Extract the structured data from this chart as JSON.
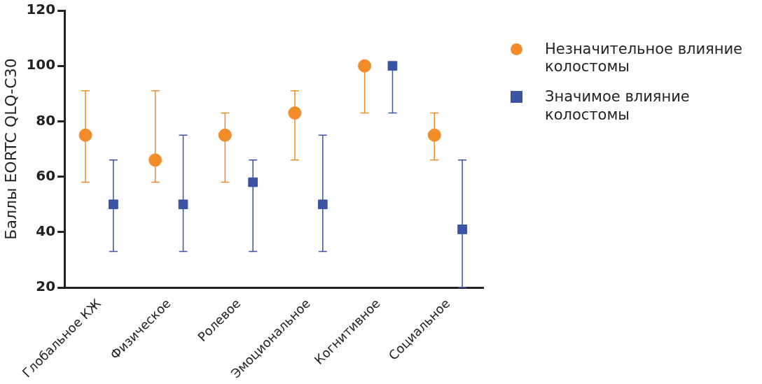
{
  "chart_data": {
    "type": "scatter",
    "ylabel": "Баллы EORTC QLQ-C30",
    "categories": [
      "Глобальное КЖ",
      "Физическое",
      "Ролевое",
      "Эмоциональное",
      "Когнитивное",
      "Социальное"
    ],
    "series": [
      {
        "name": "Незначительное влияние колостомы",
        "color": "#f28c28",
        "marker": "circle",
        "values": [
          75,
          66,
          75,
          83,
          100,
          75
        ],
        "errors": [
          [
            58,
            91
          ],
          [
            58,
            91
          ],
          [
            58,
            83
          ],
          [
            66,
            91
          ],
          [
            83,
            100
          ],
          [
            66,
            83
          ]
        ]
      },
      {
        "name": "Значимое влияние колостомы",
        "color": "#3a53a4",
        "marker": "square",
        "values": [
          50,
          50,
          58,
          50,
          100,
          41
        ],
        "errors": [
          [
            33,
            66
          ],
          [
            33,
            75
          ],
          [
            33,
            66
          ],
          [
            33,
            75
          ],
          [
            83,
            100
          ],
          [
            20,
            66
          ]
        ]
      }
    ],
    "ylim": [
      20,
      120
    ],
    "yticks": [
      20,
      40,
      60,
      80,
      100,
      120
    ],
    "grid": false,
    "legend": "top right"
  }
}
